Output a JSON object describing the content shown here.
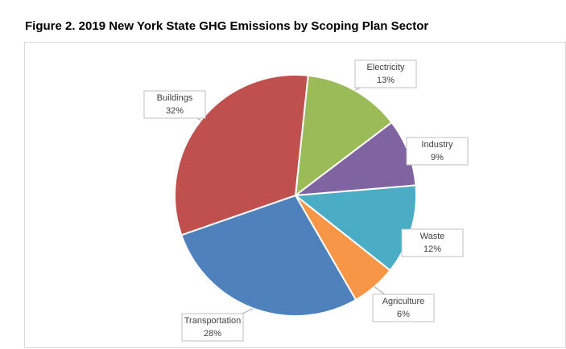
{
  "chart_data": {
    "type": "pie",
    "title": "Figure 2. 2019 New York State GHG Emissions by Scoping Plan Sector",
    "categories": [
      "Electricity",
      "Industry",
      "Waste",
      "Agriculture",
      "Transportation",
      "Buildings"
    ],
    "values": [
      13,
      9,
      12,
      6,
      28,
      32
    ],
    "value_labels": [
      "13%",
      "9%",
      "12%",
      "6%",
      "28%",
      "32%"
    ],
    "colors": [
      "#9bbb59",
      "#8064a2",
      "#4bacc6",
      "#f79646",
      "#4f81bd",
      "#c0504d"
    ]
  }
}
